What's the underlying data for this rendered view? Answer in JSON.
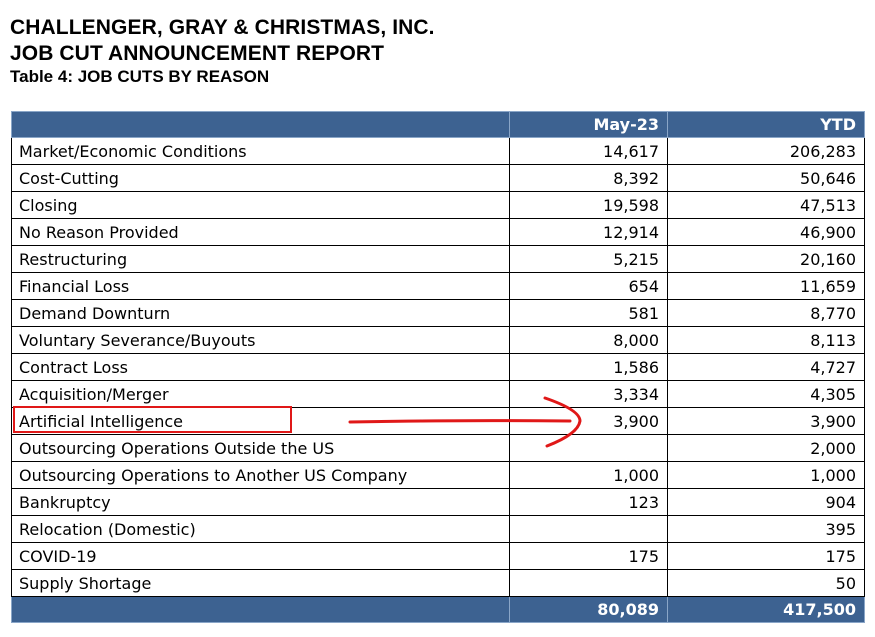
{
  "header": {
    "company": "CHALLENGER, GRAY & CHRISTMAS, INC.",
    "report": "JOB CUT ANNOUNCEMENT REPORT",
    "table_title": "Table 4: JOB CUTS BY REASON"
  },
  "table": {
    "columns": [
      "",
      "May-23",
      "YTD"
    ],
    "rows": [
      {
        "reason": "Market/Economic Conditions",
        "may": "14,617",
        "ytd": "206,283"
      },
      {
        "reason": "Cost-Cutting",
        "may": "8,392",
        "ytd": "50,646"
      },
      {
        "reason": "Closing",
        "may": "19,598",
        "ytd": "47,513"
      },
      {
        "reason": "No Reason Provided",
        "may": "12,914",
        "ytd": "46,900"
      },
      {
        "reason": "Restructuring",
        "may": "5,215",
        "ytd": "20,160"
      },
      {
        "reason": "Financial Loss",
        "may": "654",
        "ytd": "11,659"
      },
      {
        "reason": "Demand Downturn",
        "may": "581",
        "ytd": "8,770"
      },
      {
        "reason": "Voluntary Severance/Buyouts",
        "may": "8,000",
        "ytd": "8,113"
      },
      {
        "reason": "Contract Loss",
        "may": "1,586",
        "ytd": "4,727"
      },
      {
        "reason": "Acquisition/Merger",
        "may": "3,334",
        "ytd": "4,305"
      },
      {
        "reason": "Artificial Intelligence",
        "may": "3,900",
        "ytd": "3,900"
      },
      {
        "reason": "Outsourcing Operations Outside the US",
        "may": "",
        "ytd": "2,000"
      },
      {
        "reason": "Outsourcing Operations to Another US Company",
        "may": "1,000",
        "ytd": "1,000"
      },
      {
        "reason": "Bankruptcy",
        "may": "123",
        "ytd": "904"
      },
      {
        "reason": "Relocation (Domestic)",
        "may": "",
        "ytd": "395"
      },
      {
        "reason": "COVID-19",
        "may": "175",
        "ytd": "175"
      },
      {
        "reason": "Supply Shortage",
        "may": "",
        "ytd": "50"
      }
    ],
    "totals": {
      "label": "",
      "may": "80,089",
      "ytd": "417,500"
    }
  },
  "annotation": {
    "highlighted_row": "Artificial Intelligence",
    "color": "#e01818"
  },
  "colors": {
    "header_bg": "#3d6291",
    "header_text": "#ffffff"
  }
}
